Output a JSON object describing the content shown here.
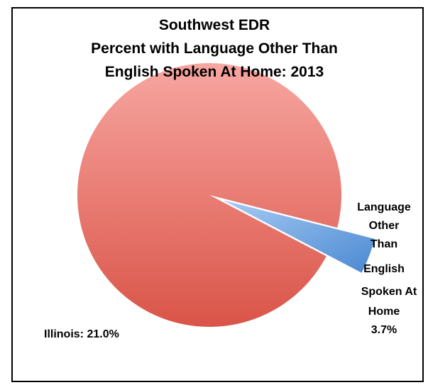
{
  "chart_data": {
    "type": "pie",
    "title_lines": [
      "Southwest EDR",
      "Percent with Language Other Than",
      "English Spoken At Home: 2013"
    ],
    "slices": [
      {
        "name": "Illinois",
        "value": 96.3,
        "color": "#e36b62",
        "exploded": false
      },
      {
        "name": "Language Other Than English Spoken At Home",
        "value": 3.7,
        "color": "#5b9bd5",
        "exploded": true
      }
    ],
    "data_labels": {
      "illinois": "Illinois: 21.0%",
      "language_lines": [
        "Language",
        "Other",
        "Than",
        "English",
        "Spoken At",
        "Home",
        "3.7%"
      ]
    },
    "legend": "none",
    "grid": false
  }
}
